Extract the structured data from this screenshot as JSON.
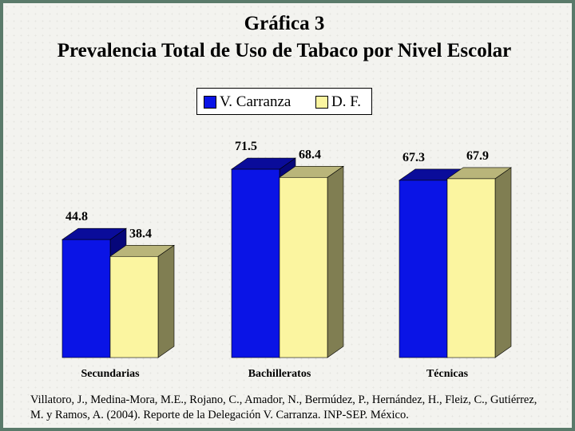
{
  "chart_data": {
    "type": "bar",
    "title": "Gráfica 3",
    "subtitle": "Prevalencia Total de Uso de Tabaco por Nivel Escolar",
    "categories": [
      "Secundarias",
      "Bachilleratos",
      "Técnicas"
    ],
    "series": [
      {
        "name": "V. Carranza",
        "values": [
          44.8,
          71.5,
          67.3
        ],
        "color": "#0a14e6"
      },
      {
        "name": "D. F.",
        "values": [
          38.4,
          68.4,
          67.9
        ],
        "color": "#fbf5a0"
      }
    ],
    "ylim": [
      0,
      80
    ],
    "grid": false,
    "legend_position": "top"
  },
  "source": "Villatoro, J., Medina-Mora, M.E., Rojano, C., Amador, N., Bermúdez, P., Hernández, H., Fleiz, C., Gutiérrez, M. y Ramos, A. (2004). Reporte de la Delegación V. Carranza. INP-SEP. México."
}
